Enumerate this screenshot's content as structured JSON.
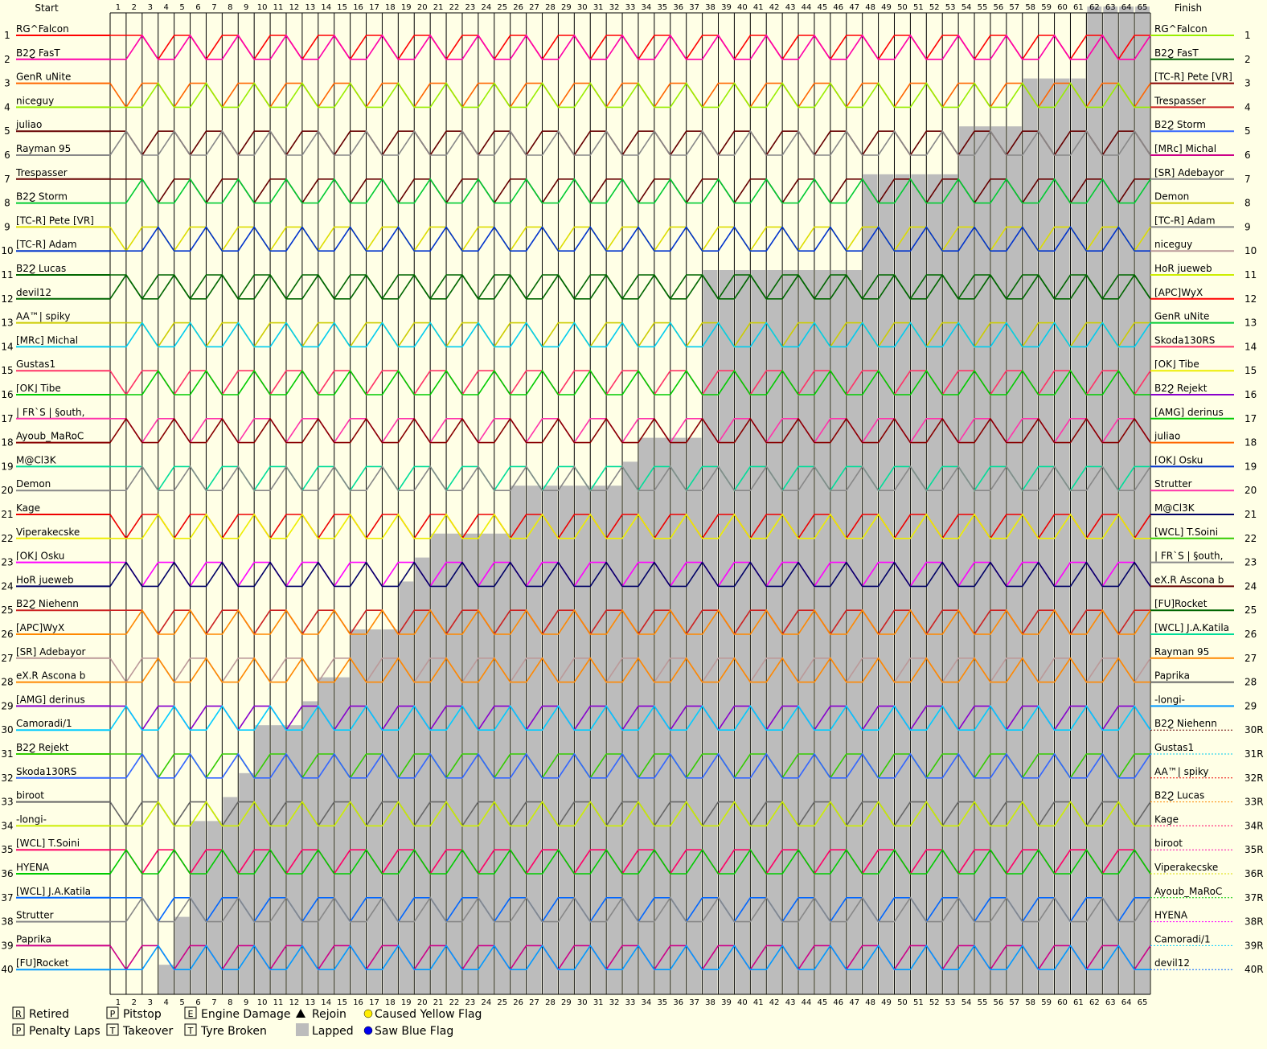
{
  "chart_data": {
    "type": "line",
    "title": "",
    "header": {
      "start": "Start",
      "finish": "Finish"
    },
    "laps": 65,
    "positions": 40,
    "start_order": [
      "RG^Falcon",
      "B2Ϩ FasT",
      "GenR uNite",
      "niceguy",
      "juliao",
      "Rayman 95",
      "Trespasser",
      "B2Ϩ Storm",
      "[TC-R] Pete [VR]",
      "[TC-R] Adam",
      "B2Ϩ Lucas",
      "devil12",
      "AA™| spiky",
      "[MRc] Michal",
      "Gustas1",
      "⌈OK⌋ Tibe",
      "| FR`S | §outh,",
      "Ayoub_MaRoC",
      "M@Cl3K",
      "Demon",
      "Kage",
      "Viperakecske",
      "⌈OK⌋ Osku",
      "HoR jueweb",
      "B2Ϩ Niehenn",
      "[APC]WyX",
      "[SR] Adebayor",
      "eX.R Ascona b",
      "[AMG] derinus",
      "Camoradi/1",
      "B2Ϩ Rejekt",
      "Skoda130RS",
      "biroot",
      "-longi-",
      "[WCL] T.Soini",
      "HYENA",
      "[WCL] J.A.Katila",
      "Strutter",
      "Paprika",
      "[FU]Rocket"
    ],
    "finish_order": [
      "RG^Falcon",
      "B2Ϩ FasT",
      "[TC-R] Pete [VR]",
      "Trespasser",
      "B2Ϩ Storm",
      "[MRc] Michal",
      "[SR] Adebayor",
      "Demon",
      "[TC-R] Adam",
      "niceguy",
      "HoR jueweb",
      "[APC]WyX",
      "GenR uNite",
      "Skoda130RS",
      "⌈OK⌋ Tibe",
      "B2Ϩ Rejekt",
      "[AMG] derinus",
      "juliao",
      "⌈OK⌋ Osku",
      "Strutter",
      "M@Cl3K",
      "[WCL] T.Soini",
      "| FR`S | §outh,",
      "eX.R Ascona b",
      "[FU]Rocket",
      "[WCL] J.A.Katila",
      "Rayman 95",
      "Paprika",
      "-longi-",
      "B2Ϩ Niehenn",
      "Gustas1",
      "AA™| spiky",
      "B2Ϩ Lucas",
      "Kage",
      "biroot",
      "Viperakecske",
      "Ayoub_MaRoC",
      "HYENA",
      "Camoradi/1",
      "devil12"
    ],
    "finish_position_labels": [
      "1",
      "2",
      "3",
      "4",
      "5",
      "6",
      "7",
      "8",
      "9",
      "10",
      "11",
      "12",
      "13",
      "14",
      "15",
      "16",
      "17",
      "18",
      "19",
      "20",
      "21",
      "22",
      "23",
      "24",
      "25",
      "26",
      "27",
      "28",
      "29",
      "30R",
      "31R",
      "32R",
      "33R",
      "34R",
      "35R",
      "36R",
      "37R",
      "38R",
      "39R",
      "40R"
    ],
    "lapped_from_lap": [
      4,
      5,
      5,
      6,
      6,
      6,
      6,
      8,
      9,
      10,
      10,
      13,
      14,
      16,
      16,
      19,
      19,
      20,
      21,
      26,
      26,
      33,
      34,
      38,
      38,
      38,
      38,
      38,
      38,
      38,
      48,
      48,
      48,
      48,
      54,
      54,
      58,
      58,
      62,
      62,
      62
    ],
    "legend": [
      {
        "symbol": "R",
        "text": "Retired"
      },
      {
        "symbol": "P",
        "text": "Penalty Laps"
      },
      {
        "symbol": "Ⓟ",
        "text": "Pitstop"
      },
      {
        "symbol": "Ⓣ",
        "text": "Takeover"
      },
      {
        "symbol": "E",
        "text": "Engine Damage"
      },
      {
        "symbol": "T",
        "text": "Tyre Broken"
      },
      {
        "symbol": "▲",
        "text": "Rejoin"
      },
      {
        "symbol": "■",
        "text": "Lapped"
      },
      {
        "symbol": "●",
        "text": "Caused Yellow Flag"
      },
      {
        "symbol": "●",
        "text": "Saw Blue Flag"
      }
    ],
    "colors": [
      "#ff0000",
      "#ff00aa",
      "#ff6600",
      "#99ee00",
      "#660000",
      "#888888",
      "#660000",
      "#00cc33",
      "#dddd00",
      "#0033cc",
      "#006600",
      "#006600",
      "#cccc00",
      "#00ccee",
      "#ff3366",
      "#00cc00",
      "#ff33aa",
      "#880000",
      "#00dd99",
      "#888888",
      "#ee0000",
      "#eeee00",
      "#ff00ff",
      "#000066",
      "#cc2222",
      "#ff8800",
      "#bb9999",
      "#ff8800",
      "#8800cc",
      "#00ccff",
      "#33cc00",
      "#3366ff",
      "#666666",
      "#ccee00",
      "#ff0066",
      "#00cc00",
      "#0066ff",
      "#888888",
      "#cc0088",
      "#0099ff"
    ],
    "gray_fill": "#bcbcbc",
    "background": "#ffffe6"
  }
}
